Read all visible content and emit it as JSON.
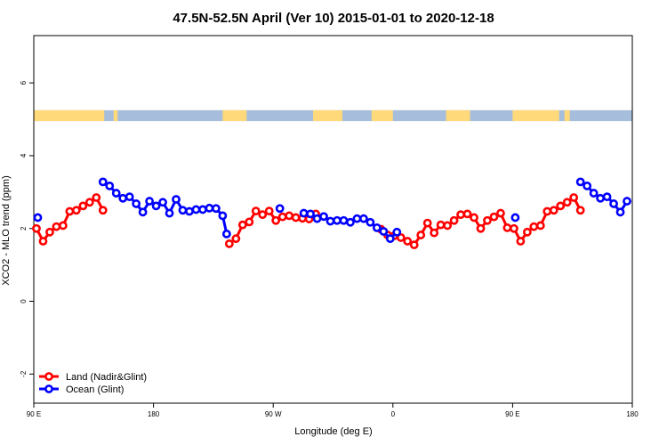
{
  "chart_data": {
    "type": "line",
    "title": "47.5N-52.5N April (Ver 10)   2015-01-01 to 2020-12-18",
    "xlabel": "Longitude (deg E)",
    "ylabel": "XCO2 - MLO trend (ppm)",
    "xlim": [
      90,
      540
    ],
    "ylim": [
      -2.8,
      7.3
    ],
    "x_ticks": [
      {
        "value": 90,
        "label": "90 E"
      },
      {
        "value": 180,
        "label": "180"
      },
      {
        "value": 270,
        "label": "90 W"
      },
      {
        "value": 360,
        "label": "0"
      },
      {
        "value": 450,
        "label": "90 E"
      },
      {
        "value": 540,
        "label": "180"
      }
    ],
    "y_ticks": [
      {
        "value": -2,
        "label": "-2"
      },
      {
        "value": 0,
        "label": "0"
      },
      {
        "value": 2,
        "label": "2"
      },
      {
        "value": 4,
        "label": "4"
      },
      {
        "value": 6,
        "label": "6"
      }
    ],
    "surface_band": {
      "y_range": [
        4.95,
        5.25
      ],
      "land_color": "#FFD97A",
      "ocean_color": "#A6BDDB",
      "land_segments": [
        [
          90,
          143
        ],
        [
          150,
          153
        ],
        [
          232,
          250
        ],
        [
          300,
          322
        ],
        [
          344,
          360
        ],
        [
          400,
          418
        ],
        [
          450,
          485
        ],
        [
          489,
          493
        ]
      ]
    },
    "series": [
      {
        "name": "Land (Nadir&Glint)",
        "color": "#FF0000",
        "segments": [
          [
            [
              92,
              2.0
            ],
            [
              97,
              1.65
            ],
            [
              102,
              1.9
            ],
            [
              107,
              2.05
            ],
            [
              112,
              2.08
            ],
            [
              117,
              2.47
            ],
            [
              122,
              2.5
            ],
            [
              127,
              2.62
            ],
            [
              132,
              2.72
            ],
            [
              137,
              2.85
            ],
            [
              142,
              2.5
            ]
          ],
          [
            [
              237,
              1.58
            ],
            [
              242,
              1.72
            ],
            [
              247,
              2.1
            ],
            [
              252,
              2.18
            ],
            [
              257,
              2.48
            ],
            [
              262,
              2.38
            ],
            [
              267,
              2.48
            ],
            [
              272,
              2.22
            ],
            [
              277,
              2.32
            ],
            [
              282,
              2.35
            ],
            [
              287,
              2.3
            ],
            [
              292,
              2.28
            ],
            [
              297,
              2.26
            ],
            [
              302,
              2.4
            ]
          ],
          [
            [
              351,
              1.98
            ],
            [
              356,
              1.82
            ],
            [
              361,
              1.8
            ],
            [
              366,
              1.75
            ],
            [
              371,
              1.65
            ],
            [
              376,
              1.55
            ],
            [
              381,
              1.82
            ],
            [
              386,
              2.15
            ],
            [
              391,
              1.88
            ],
            [
              396,
              2.1
            ],
            [
              401,
              2.08
            ],
            [
              406,
              2.22
            ],
            [
              411,
              2.38
            ],
            [
              416,
              2.4
            ],
            [
              421,
              2.3
            ],
            [
              426,
              2.0
            ],
            [
              431,
              2.22
            ],
            [
              436,
              2.32
            ],
            [
              441,
              2.42
            ],
            [
              446,
              2.02
            ],
            [
              451,
              2.0
            ],
            [
              456,
              1.65
            ],
            [
              461,
              1.9
            ],
            [
              466,
              2.05
            ],
            [
              471,
              2.08
            ],
            [
              476,
              2.47
            ],
            [
              481,
              2.5
            ],
            [
              486,
              2.62
            ],
            [
              491,
              2.72
            ],
            [
              496,
              2.85
            ],
            [
              501,
              2.5
            ]
          ]
        ]
      },
      {
        "name": "Ocean (Glint)",
        "color": "#0000FF",
        "segments": [
          [
            [
              93,
              2.3
            ]
          ],
          [
            [
              142,
              3.28
            ],
            [
              147,
              3.17
            ],
            [
              152,
              2.97
            ],
            [
              157,
              2.83
            ],
            [
              162,
              2.87
            ],
            [
              167,
              2.68
            ],
            [
              172,
              2.45
            ],
            [
              177,
              2.75
            ],
            [
              182,
              2.62
            ],
            [
              187,
              2.72
            ],
            [
              192,
              2.42
            ],
            [
              197,
              2.8
            ],
            [
              202,
              2.5
            ],
            [
              207,
              2.47
            ],
            [
              212,
              2.52
            ],
            [
              217,
              2.52
            ],
            [
              222,
              2.56
            ],
            [
              227,
              2.55
            ],
            [
              232,
              2.35
            ],
            [
              235,
              1.85
            ]
          ],
          [
            [
              275,
              2.55
            ]
          ],
          [
            [
              293,
              2.42
            ],
            [
              298,
              2.4
            ],
            [
              303,
              2.27
            ],
            [
              308,
              2.33
            ],
            [
              313,
              2.2
            ],
            [
              318,
              2.22
            ],
            [
              323,
              2.22
            ],
            [
              328,
              2.17
            ],
            [
              333,
              2.27
            ],
            [
              338,
              2.27
            ],
            [
              343,
              2.17
            ],
            [
              348,
              2.02
            ],
            [
              353,
              1.92
            ],
            [
              358,
              1.72
            ],
            [
              363,
              1.9
            ]
          ],
          [
            [
              452,
              2.3
            ]
          ],
          [
            [
              501,
              3.28
            ],
            [
              506,
              3.17
            ],
            [
              511,
              2.97
            ],
            [
              516,
              2.83
            ],
            [
              521,
              2.87
            ],
            [
              526,
              2.68
            ],
            [
              531,
              2.45
            ],
            [
              536,
              2.75
            ]
          ]
        ]
      }
    ],
    "legend_placement": "bottom-left",
    "grid": false
  }
}
